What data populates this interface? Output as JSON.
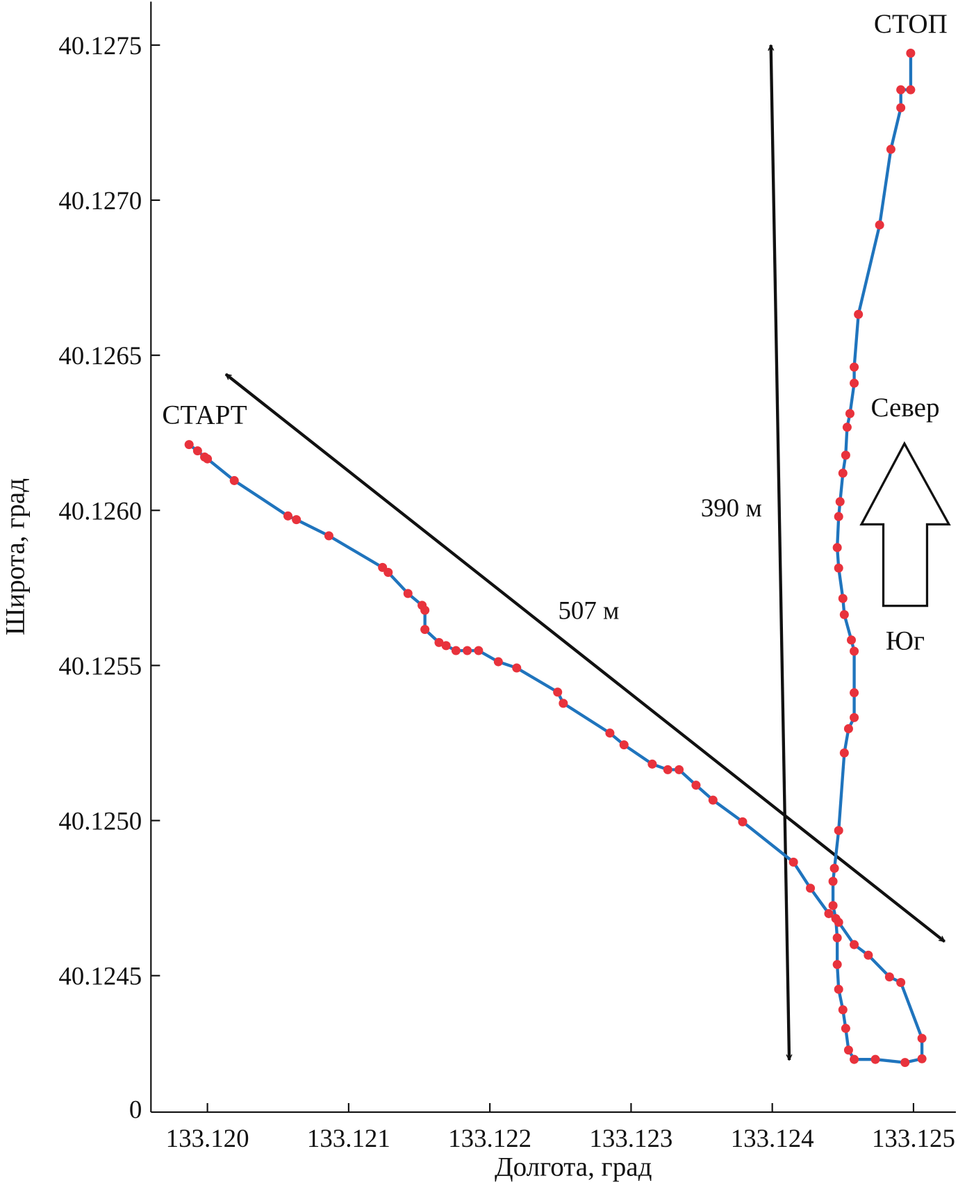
{
  "chart_data": {
    "type": "line",
    "title": "",
    "xlabel": "Долгота, град",
    "ylabel": "Широта, град",
    "xlim": [
      133.1196,
      133.1253
    ],
    "ylim": [
      40.12406,
      40.12764
    ],
    "grid": false,
    "x_ticks": [
      133.12,
      133.121,
      133.122,
      133.123,
      133.124,
      133.125
    ],
    "x_tick_labels": [
      "133.120",
      "133.121",
      "133.122",
      "133.123",
      "133.124",
      "133.125"
    ],
    "y_ticks": [
      40.1245,
      40.125,
      40.1255,
      40.126,
      40.1265,
      40.127,
      40.1275
    ],
    "y_tick_labels": [
      "40.1245",
      "40.1250",
      "40.1255",
      "40.1260",
      "40.1265",
      "40.1270",
      "40.1275"
    ],
    "y_bottom_label": "0",
    "colors": {
      "line": "#1f74bd",
      "markers": "#e8323c",
      "annotations": "#111111"
    },
    "series": [
      {
        "x": [
          133.11987,
          133.11993,
          133.11998,
          133.12,
          133.12019,
          133.12057,
          133.12063,
          133.12086,
          133.12124,
          133.12128,
          133.12142,
          133.12152,
          133.12154,
          133.12154,
          133.12164,
          133.12169,
          133.12176,
          133.12184,
          133.12192,
          133.12206,
          133.12219,
          133.12248,
          133.12252,
          133.12285,
          133.12295,
          133.12315,
          133.12326,
          133.12334,
          133.12346,
          133.12358,
          133.12379,
          133.12415,
          133.12427,
          133.1244,
          133.12447,
          133.12458,
          133.12468,
          133.12483,
          133.12491,
          133.12506,
          133.12506,
          133.12494,
          133.12473,
          133.12458,
          133.12454,
          133.12452,
          133.1245,
          133.12447,
          133.12446,
          133.12446,
          133.12445,
          133.12443,
          133.12443,
          133.12444,
          133.12447,
          133.12451,
          133.12454,
          133.12458,
          133.12458,
          133.12458,
          133.12456,
          133.12451,
          133.1245,
          133.12447,
          133.12446,
          133.12447,
          133.12448,
          133.1245,
          133.12452,
          133.12453,
          133.12455,
          133.12458,
          133.12458,
          133.12461,
          133.12476,
          133.12484,
          133.12491,
          133.12491,
          133.12498,
          133.12498
        ],
        "y": [
          40.126212,
          40.126192,
          40.126172,
          40.126166,
          40.126096,
          40.125982,
          40.12597,
          40.125918,
          40.125816,
          40.1258,
          40.125732,
          40.125694,
          40.125678,
          40.125616,
          40.125574,
          40.125564,
          40.125548,
          40.125548,
          40.125548,
          40.125512,
          40.125492,
          40.125414,
          40.125378,
          40.125282,
          40.125244,
          40.125182,
          40.125164,
          40.125164,
          40.125114,
          40.125066,
          40.124996,
          40.124866,
          40.124782,
          40.1247,
          40.124672,
          40.1246,
          40.124566,
          40.124496,
          40.124478,
          40.124298,
          40.124232,
          40.12422,
          40.12423,
          40.12423,
          40.12426,
          40.12433,
          40.12439,
          40.124456,
          40.124536,
          40.124622,
          40.124684,
          40.124726,
          40.124804,
          40.124846,
          40.124968,
          40.125218,
          40.125296,
          40.125332,
          40.125412,
          40.125546,
          40.125582,
          40.125664,
          40.125716,
          40.125814,
          40.12588,
          40.12598,
          40.126028,
          40.12612,
          40.126178,
          40.126268,
          40.126312,
          40.12641,
          40.126462,
          40.126632,
          40.12692,
          40.127164,
          40.127298,
          40.127356,
          40.127356,
          40.127474
        ]
      }
    ],
    "annotations": [
      {
        "kind": "text",
        "text": "СТАРТ",
        "x": 133.11998,
        "y": 40.12628
      },
      {
        "kind": "text",
        "text": "СТОП",
        "x": 133.12498,
        "y": 40.12754
      },
      {
        "kind": "double-arrow",
        "label": "507 м",
        "from": [
          133.12013,
          40.126439
        ],
        "to": [
          133.12522,
          40.12461
        ],
        "label_at": [
          133.1227,
          40.12565
        ]
      },
      {
        "kind": "double-arrow",
        "label": "390 м",
        "from": [
          133.12399,
          40.1275
        ],
        "to": [
          133.12412,
          40.124228
        ],
        "label_at": [
          133.12371,
          40.12598
        ]
      },
      {
        "kind": "compass",
        "north_label": "Север",
        "south_label": "Юг"
      }
    ]
  }
}
